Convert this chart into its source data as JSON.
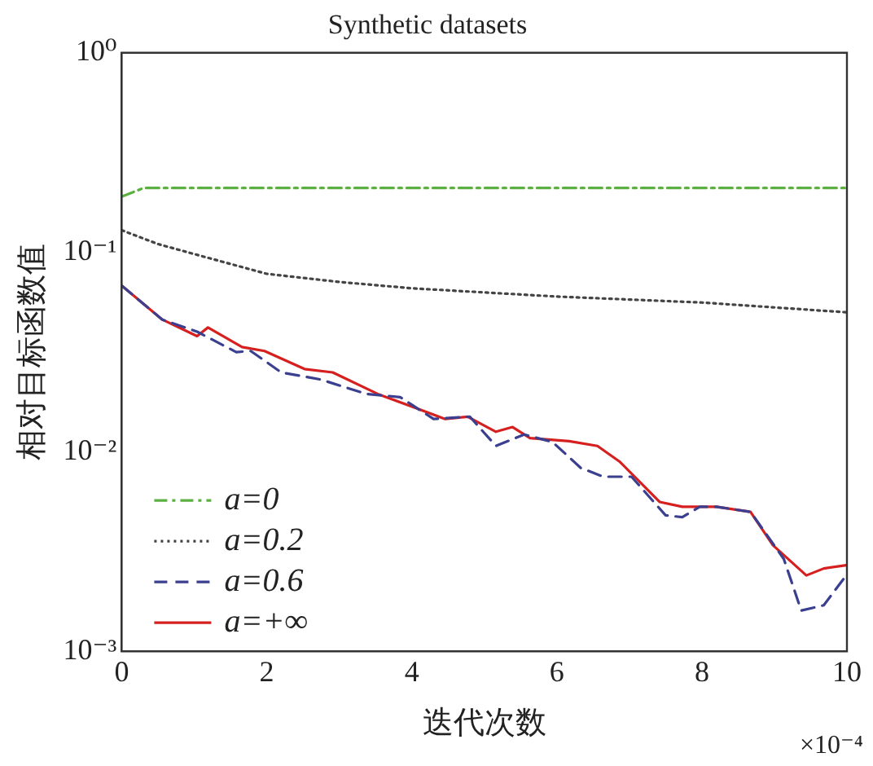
{
  "chart_data": {
    "type": "line",
    "title": "Synthetic datasets",
    "xlabel": "迭代次数",
    "ylabel": "相对目标函数值",
    "annotations": [
      "×10⁻⁴"
    ],
    "log": "y",
    "grid": false,
    "legend": "bottom left",
    "marker": "none",
    "xlim": [
      0,
      10
    ],
    "xticks": [
      0,
      2,
      4,
      6,
      8,
      10
    ],
    "ylim": [
      0.001,
      1
    ],
    "yticks": [
      {
        "value": 0.001,
        "label": "10⁻³"
      },
      {
        "value": 0.01,
        "label": "10⁻²"
      },
      {
        "value": 0.1,
        "label": "10⁻¹"
      },
      {
        "value": 1,
        "label": "10⁰"
      }
    ],
    "series": [
      {
        "name": "a=0",
        "color": "#5cb040",
        "line_style": "dashdot",
        "x": [
          0,
          0.3,
          1,
          4,
          7,
          10
        ],
        "values": [
          0.19,
          0.21,
          0.21,
          0.21,
          0.21,
          0.21
        ]
      },
      {
        "name": "a=0.2",
        "color": "#444444",
        "line_style": "dotted",
        "x": [
          0,
          0.5,
          1,
          2,
          3,
          4,
          6,
          8,
          10
        ],
        "values": [
          0.129,
          0.11,
          0.098,
          0.078,
          0.071,
          0.066,
          0.06,
          0.056,
          0.05
        ]
      },
      {
        "name": "a=0.6",
        "color": "#3a3f8f",
        "line_style": "dashed",
        "x": [
          0,
          0.56,
          1.04,
          1.58,
          1.78,
          2.2,
          2.75,
          3.37,
          3.84,
          4.3,
          4.8,
          5.16,
          5.55,
          5.94,
          6.33,
          6.64,
          7.03,
          7.5,
          7.73,
          7.97,
          8.2,
          8.67,
          9.13,
          9.37,
          9.68,
          9.99
        ],
        "values": [
          0.068,
          0.046,
          0.04,
          0.0316,
          0.032,
          0.025,
          0.023,
          0.0195,
          0.0188,
          0.0146,
          0.015,
          0.0107,
          0.0122,
          0.0112,
          0.0083,
          0.0075,
          0.0075,
          0.0048,
          0.0047,
          0.0053,
          0.0053,
          0.005,
          0.0029,
          0.0016,
          0.0017,
          0.0024
        ]
      },
      {
        "name": "a=+∞",
        "color": "#d62020",
        "line_style": "solid",
        "x": [
          0,
          0.56,
          1.04,
          1.19,
          1.66,
          1.97,
          2.52,
          2.91,
          3.53,
          4.46,
          4.77,
          5.16,
          5.39,
          5.63,
          6.17,
          6.56,
          6.87,
          7.42,
          7.73,
          8.2,
          8.67,
          8.98,
          9.44,
          9.68,
          9.99
        ],
        "values": [
          0.068,
          0.046,
          0.038,
          0.042,
          0.0335,
          0.032,
          0.026,
          0.025,
          0.0195,
          0.0146,
          0.015,
          0.0126,
          0.0133,
          0.0117,
          0.0113,
          0.0107,
          0.0089,
          0.0056,
          0.0053,
          0.0053,
          0.005,
          0.0034,
          0.0024,
          0.0026,
          0.0027
        ]
      }
    ]
  }
}
